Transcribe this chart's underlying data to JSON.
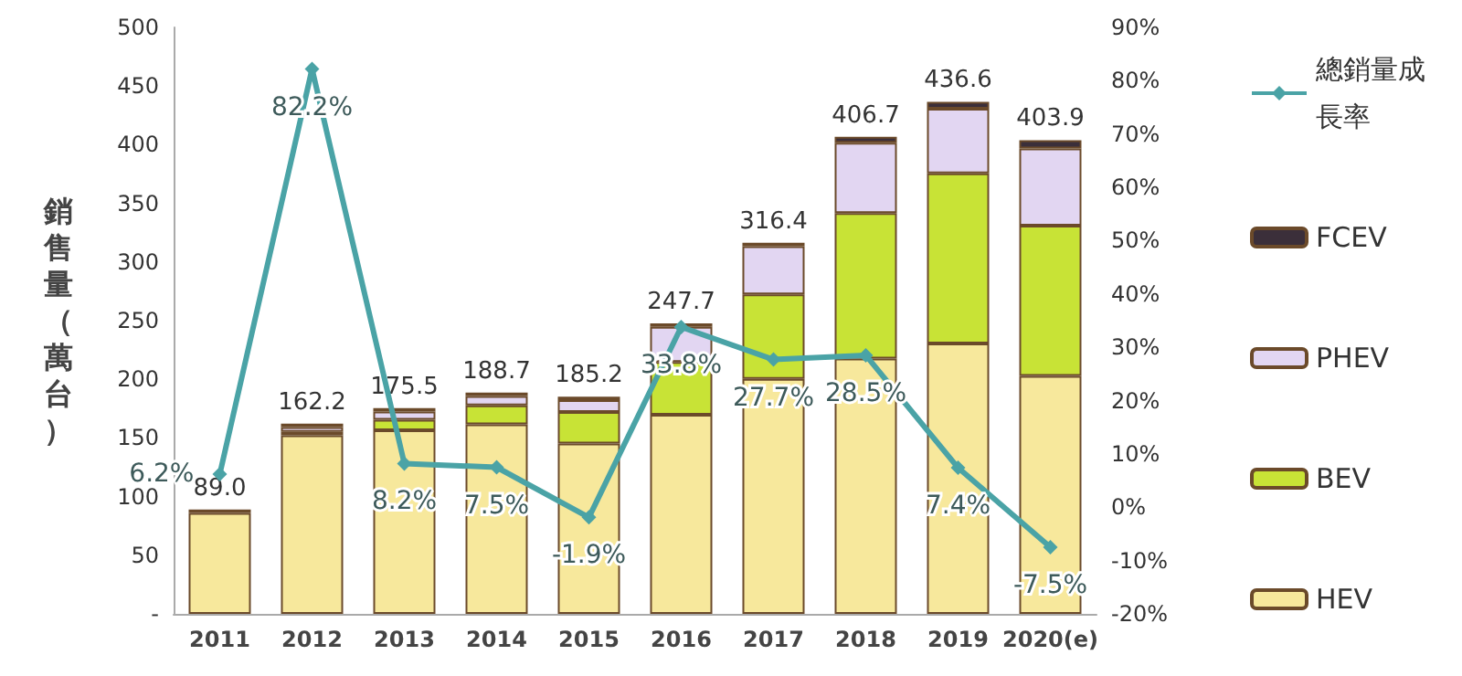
{
  "chart_data": {
    "type": "bar",
    "stacked": true,
    "ylabel": "銷售量（萬台）",
    "categories": [
      "2011",
      "2012",
      "2013",
      "2014",
      "2015",
      "2016",
      "2017",
      "2018",
      "2019",
      "2020(e)"
    ],
    "series": [
      {
        "name": "HEV",
        "color": "#f7e89c",
        "values": [
          86,
          152.2,
          156.5,
          161.7,
          145.2,
          169.7,
          200.4,
          217.7,
          230.6,
          202.9
        ]
      },
      {
        "name": "BEV",
        "color": "#c8e336",
        "values": [
          null,
          3,
          9,
          16,
          27,
          45,
          72,
          124,
          145,
          128
        ]
      },
      {
        "name": "PHEV",
        "color": "#e2d6f2",
        "values": [
          null,
          4,
          7,
          8,
          10,
          30,
          41,
          60,
          55,
          66
        ]
      },
      {
        "name": "FCEV",
        "color": "#3b2f3a",
        "values": [
          3,
          3,
          3,
          3,
          3,
          3,
          3,
          5,
          6,
          7
        ]
      },
      {
        "name": "總銷量成長率",
        "type": "line",
        "axis": "y2",
        "color": "#4aa3a6",
        "marker": "diamond",
        "values": [
          6.2,
          82.2,
          8.2,
          7.5,
          -1.9,
          33.8,
          27.7,
          28.5,
          7.4,
          -7.5
        ],
        "value_labels": [
          "6.2%",
          "82.2%",
          "8.2%",
          "7.5%",
          "-1.9%",
          "33.8%",
          "27.7%",
          "28.5%",
          "7.4%",
          "-7.5%"
        ]
      }
    ],
    "totals": [
      "89.0",
      "162.2",
      "175.5",
      "188.7",
      "185.2",
      "247.7",
      "316.4",
      "406.7",
      "436.6",
      "403.9"
    ],
    "ylim": [
      0,
      500
    ],
    "yticks": [
      {
        "value": 0,
        "label": "-"
      },
      50,
      100,
      150,
      200,
      250,
      300,
      350,
      400,
      450,
      500
    ],
    "y2lim": [
      -20,
      90
    ],
    "y2ticks": [
      {
        "value": -20,
        "label": "-20%"
      },
      {
        "value": -10,
        "label": "-10%"
      },
      {
        "value": 0,
        "label": "0%"
      },
      {
        "value": 10,
        "label": "10%"
      },
      {
        "value": 20,
        "label": "20%"
      },
      {
        "value": 30,
        "label": "30%"
      },
      {
        "value": 40,
        "label": "40%"
      },
      {
        "value": 50,
        "label": "50%"
      },
      {
        "value": 60,
        "label": "60%"
      },
      {
        "value": 70,
        "label": "70%"
      },
      {
        "value": 80,
        "label": "80%"
      },
      {
        "value": 90,
        "label": "90%"
      }
    ],
    "grid": false,
    "legend": "right"
  }
}
